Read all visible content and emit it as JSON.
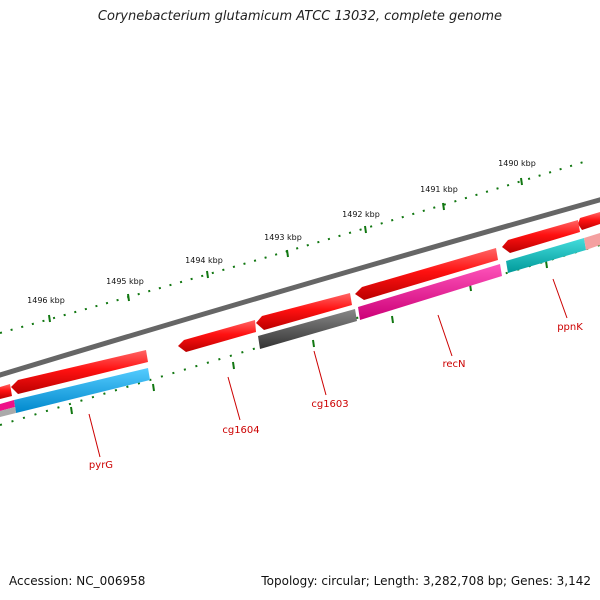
{
  "title": "Corynebacterium glutamicum ATCC 13032, complete genome",
  "footer": {
    "accession": "Accession: NC_006958",
    "summary": "Topology: circular; Length: 3,282,708 bp; Genes: 3,142"
  },
  "scale": {
    "unit": "kbp",
    "ticks": [
      {
        "label": "1490 kbp"
      },
      {
        "label": "1491 kbp"
      },
      {
        "label": "1492 kbp"
      },
      {
        "label": "1493 kbp"
      },
      {
        "label": "1494 kbp"
      },
      {
        "label": "1495 kbp"
      },
      {
        "label": "1496 kbp"
      }
    ]
  },
  "gene_labels": [
    {
      "name": "pyrG"
    },
    {
      "name": "cg1604"
    },
    {
      "name": "cg1603"
    },
    {
      "name": "recN"
    },
    {
      "name": "ppnK"
    }
  ],
  "colors": {
    "backbone": "#888888",
    "cds_forward": "#ff1111",
    "pyrG": "#11aadd",
    "cg1603": "#555555",
    "recN": "#ee1188",
    "ppnK": "#11bbbb",
    "tick": "#117711",
    "label": "#cc0000"
  }
}
